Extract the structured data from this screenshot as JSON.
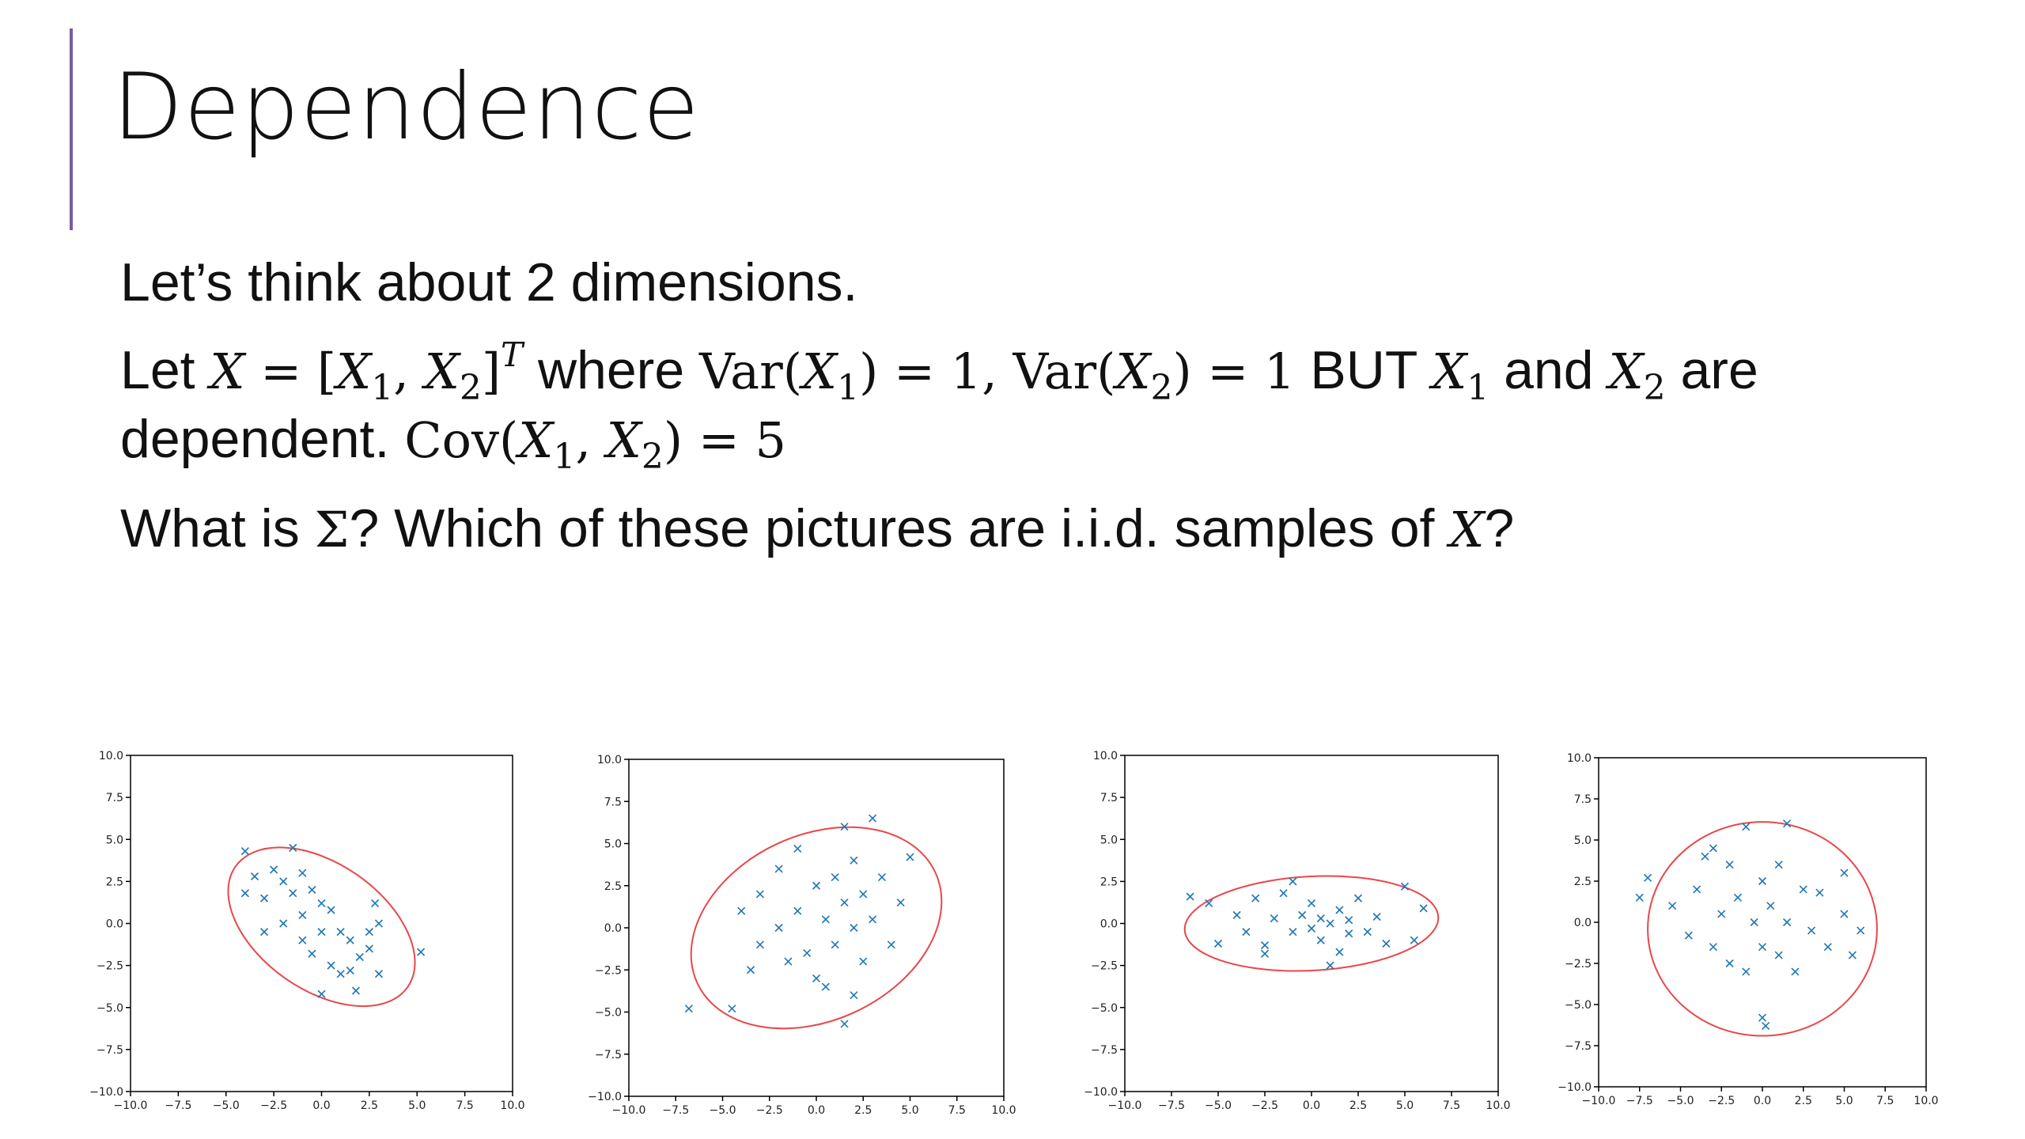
{
  "slide": {
    "title": "Dependence",
    "lines": [
      [
        "Let’s think about 2 dimensions."
      ],
      [
        "Let ",
        "X",
        " = [",
        "X",
        "1",
        ", ",
        "X",
        "2",
        "]",
        "T",
        " where ",
        "Var(",
        "X",
        "1",
        ") = 1, ",
        "Var(",
        "X",
        "2",
        ") = 1",
        " BUT ",
        "X",
        "1",
        " and ",
        "X",
        "2",
        " are dependent. ",
        "Cov(",
        "X",
        "1",
        ", ",
        "X",
        "2",
        ") = 5"
      ],
      [
        "What is ",
        "Σ",
        "? Which of these pictures are i.i.d. samples of ",
        "X",
        "?"
      ]
    ]
  },
  "chart_data": [
    {
      "type": "scatter",
      "marker": "x",
      "color": "#1f77b4",
      "x": [
        -4,
        -3.5,
        -3,
        -2.5,
        -2,
        -1.5,
        -1,
        -1,
        -0.5,
        0,
        0.5,
        1,
        1.5,
        2,
        2.5,
        3,
        -2,
        -1,
        0,
        0.5,
        1,
        1.5,
        2.5,
        3,
        5.2,
        -3,
        -4,
        -0.5,
        1.8,
        0,
        2.8,
        -1.5
      ],
      "values": [
        4.3,
        2.8,
        1.5,
        3.2,
        2.5,
        1.8,
        3,
        0.5,
        2,
        1.2,
        0.8,
        -0.5,
        -1,
        -2,
        -1.5,
        -3,
        0,
        -1,
        -0.5,
        -2.5,
        -3,
        -2.8,
        -0.5,
        0,
        -1.7,
        -0.5,
        1.8,
        -1.8,
        -4,
        -4.2,
        1.2,
        4.5
      ],
      "ellipse": {
        "center": [
          0,
          -0.2
        ],
        "width": 11,
        "height": 7.5,
        "angle": -35,
        "color": "#e8474a"
      },
      "xlim": [
        -10,
        10
      ],
      "ylim": [
        -10,
        10
      ],
      "xticks": [
        {
          "value": -10,
          "label": "−10.0"
        },
        {
          "value": -7.5,
          "label": "−7.5"
        },
        {
          "value": -5,
          "label": "−5.0"
        },
        {
          "value": -2.5,
          "label": "−2.5"
        },
        {
          "value": 0,
          "label": "0.0"
        },
        {
          "value": 2.5,
          "label": "2.5"
        },
        {
          "value": 5,
          "label": "5.0"
        },
        {
          "value": 7.5,
          "label": "7.5"
        },
        {
          "value": 10,
          "label": "10.0"
        }
      ],
      "yticks": [
        {
          "value": -10,
          "label": "−10.0"
        },
        {
          "value": -7.5,
          "label": "−7.5"
        },
        {
          "value": -5,
          "label": "−5.0"
        },
        {
          "value": -2.5,
          "label": "−2.5"
        },
        {
          "value": 0,
          "label": "0.0"
        },
        {
          "value": 2.5,
          "label": "2.5"
        },
        {
          "value": 5,
          "label": "5.0"
        },
        {
          "value": 7.5,
          "label": "7.5"
        },
        {
          "value": 10,
          "label": "10.0"
        }
      ]
    },
    {
      "type": "scatter",
      "marker": "x",
      "color": "#1f77b4",
      "x": [
        -6.8,
        -4.5,
        -4,
        -3,
        -3,
        -2,
        -2,
        -1.5,
        -1,
        -1,
        -0.5,
        0,
        0,
        0.5,
        1,
        1,
        1.5,
        1.5,
        2,
        2,
        2.5,
        2.5,
        3,
        3,
        3.5,
        4,
        4.5,
        5,
        1.5,
        -3.5,
        0.5,
        2
      ],
      "values": [
        -4.8,
        -4.8,
        1,
        -1,
        2,
        0,
        3.5,
        -2,
        1,
        4.7,
        -1.5,
        2.5,
        -3,
        0.5,
        3,
        -1,
        1.5,
        -5.7,
        0,
        4,
        2,
        -2,
        6.5,
        0.5,
        3,
        -1,
        1.5,
        4.2,
        6,
        -2.5,
        -3.5,
        -4
      ],
      "ellipse": {
        "center": [
          0,
          0
        ],
        "width": 14,
        "height": 11,
        "angle": 25,
        "color": "#e8474a"
      },
      "xlim": [
        -10,
        10
      ],
      "ylim": [
        -10,
        10
      ],
      "xticks": [
        {
          "value": -10,
          "label": "−10.0"
        },
        {
          "value": -7.5,
          "label": "−7.5"
        },
        {
          "value": -5,
          "label": "−5.0"
        },
        {
          "value": -2.5,
          "label": "−2.5"
        },
        {
          "value": 0,
          "label": "0.0"
        },
        {
          "value": 2.5,
          "label": "2.5"
        },
        {
          "value": 5,
          "label": "5.0"
        },
        {
          "value": 7.5,
          "label": "7.5"
        },
        {
          "value": 10,
          "label": "10.0"
        }
      ],
      "yticks": [
        {
          "value": -10,
          "label": "−10.0"
        },
        {
          "value": -7.5,
          "label": "−7.5"
        },
        {
          "value": -5,
          "label": "−5.0"
        },
        {
          "value": -2.5,
          "label": "−2.5"
        },
        {
          "value": 0,
          "label": "0.0"
        },
        {
          "value": 2.5,
          "label": "2.5"
        },
        {
          "value": 5,
          "label": "5.0"
        },
        {
          "value": 7.5,
          "label": "7.5"
        },
        {
          "value": 10,
          "label": "10.0"
        }
      ]
    },
    {
      "type": "scatter",
      "marker": "x",
      "color": "#1f77b4",
      "x": [
        -6.5,
        -5.5,
        -5,
        -4,
        -3.5,
        -3,
        -2.5,
        -2,
        -1.5,
        -1,
        -0.5,
        0,
        0,
        0.5,
        0.5,
        1,
        1,
        1.5,
        2,
        2,
        2.5,
        3,
        3.5,
        4,
        5,
        5.5,
        6,
        -2.5,
        -1,
        1.5
      ],
      "values": [
        1.6,
        1.2,
        -1.2,
        0.5,
        -0.5,
        1.5,
        -1.3,
        0.3,
        1.8,
        -0.5,
        0.5,
        -0.3,
        1.2,
        -1,
        0.3,
        0,
        -2.5,
        0.8,
        -0.6,
        0.2,
        1.5,
        -0.5,
        0.4,
        -1.2,
        2.2,
        -1,
        0.9,
        -1.8,
        2.5,
        -1.7
      ],
      "ellipse": {
        "center": [
          0,
          0
        ],
        "width": 13.6,
        "height": 5.6,
        "angle": 3,
        "color": "#e8474a"
      },
      "xlim": [
        -10,
        10
      ],
      "ylim": [
        -10,
        10
      ],
      "xticks": [
        {
          "value": -10,
          "label": "−10.0"
        },
        {
          "value": -7.5,
          "label": "−7.5"
        },
        {
          "value": -5,
          "label": "−5.0"
        },
        {
          "value": -2.5,
          "label": "−2.5"
        },
        {
          "value": 0,
          "label": "0.0"
        },
        {
          "value": 2.5,
          "label": "2.5"
        },
        {
          "value": 5,
          "label": "5.0"
        },
        {
          "value": 7.5,
          "label": "7.5"
        },
        {
          "value": 10,
          "label": "10.0"
        }
      ],
      "yticks": [
        {
          "value": -10,
          "label": "−10.0"
        },
        {
          "value": -7.5,
          "label": "−7.5"
        },
        {
          "value": -5,
          "label": "−5.0"
        },
        {
          "value": -2.5,
          "label": "−2.5"
        },
        {
          "value": 0,
          "label": "0.0"
        },
        {
          "value": 2.5,
          "label": "2.5"
        },
        {
          "value": 5,
          "label": "5.0"
        },
        {
          "value": 7.5,
          "label": "7.5"
        },
        {
          "value": 10,
          "label": "10.0"
        }
      ]
    },
    {
      "type": "scatter",
      "marker": "x",
      "color": "#1f77b4",
      "x": [
        -7.5,
        -7,
        -5.5,
        -4.5,
        -4,
        -3.5,
        -3,
        -2.5,
        -2,
        -2,
        -1.5,
        -1,
        -1,
        -0.5,
        0,
        0,
        0,
        0.2,
        0.5,
        1,
        1,
        1.5,
        1.5,
        2,
        2.5,
        3,
        3.5,
        4,
        5,
        5.5,
        6,
        5,
        -3
      ],
      "values": [
        1.5,
        2.7,
        1,
        -0.8,
        2,
        4,
        -1.5,
        0.5,
        -2.5,
        3.5,
        1.5,
        5.8,
        -3,
        0,
        2.5,
        -1.5,
        -5.8,
        -6.3,
        1,
        -2,
        3.5,
        0,
        6,
        -3,
        2,
        -0.5,
        1.8,
        -1.5,
        0.5,
        -2,
        -0.5,
        3,
        4.5
      ],
      "ellipse": {
        "center": [
          0,
          -0.4
        ],
        "width": 14,
        "height": 13,
        "angle": 0,
        "color": "#e8474a"
      },
      "xlim": [
        -10,
        10
      ],
      "ylim": [
        -10,
        10
      ],
      "xticks": [
        {
          "value": -10,
          "label": "−10.0"
        },
        {
          "value": -7.5,
          "label": "−7.5"
        },
        {
          "value": -5,
          "label": "−5.0"
        },
        {
          "value": -2.5,
          "label": "−2.5"
        },
        {
          "value": 0,
          "label": "0.0"
        },
        {
          "value": 2.5,
          "label": "2.5"
        },
        {
          "value": 5,
          "label": "5.0"
        },
        {
          "value": 7.5,
          "label": "7.5"
        },
        {
          "value": 10,
          "label": "10.0"
        }
      ],
      "yticks": [
        {
          "value": -10,
          "label": "−10.0"
        },
        {
          "value": -7.5,
          "label": "−7.5"
        },
        {
          "value": -5,
          "label": "−5.0"
        },
        {
          "value": -2.5,
          "label": "−2.5"
        },
        {
          "value": 0,
          "label": "0.0"
        },
        {
          "value": 2.5,
          "label": "2.5"
        },
        {
          "value": 5,
          "label": "5.0"
        },
        {
          "value": 7.5,
          "label": "7.5"
        },
        {
          "value": 10,
          "label": "10.0"
        }
      ]
    }
  ]
}
